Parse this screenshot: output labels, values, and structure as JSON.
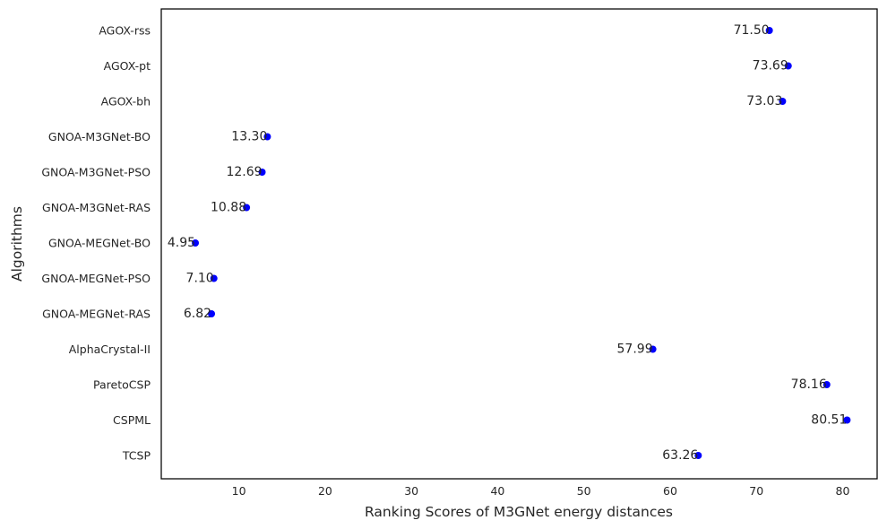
{
  "chart_data": {
    "type": "scatter",
    "orientation": "horizontal",
    "title": "",
    "xlabel": "Ranking Scores of M3GNet energy distances",
    "ylabel": "Algorithms",
    "xlim": [
      1,
      84
    ],
    "xticks": [
      10,
      20,
      30,
      40,
      50,
      60,
      70,
      80
    ],
    "grid": false,
    "marker_color": "#0000ff",
    "categories": [
      "AGOX-rss",
      "AGOX-pt",
      "AGOX-bh",
      "GNOA-M3GNet-BO",
      "GNOA-M3GNet-PSO",
      "GNOA-M3GNet-RAS",
      "GNOA-MEGNet-BO",
      "GNOA-MEGNet-PSO",
      "GNOA-MEGNet-RAS",
      "AlphaCrystal-II",
      "ParetoCSP",
      "CSPML",
      "TCSP"
    ],
    "values": [
      71.5,
      73.69,
      73.03,
      13.3,
      12.69,
      10.88,
      4.95,
      7.1,
      6.82,
      57.99,
      78.16,
      80.51,
      63.26
    ],
    "value_labels": [
      "71.50",
      "73.69",
      "73.03",
      "13.30",
      "12.69",
      "10.88",
      "4.95",
      "7.10",
      "6.82",
      "57.99",
      "78.16",
      "80.51",
      "63.26"
    ]
  }
}
